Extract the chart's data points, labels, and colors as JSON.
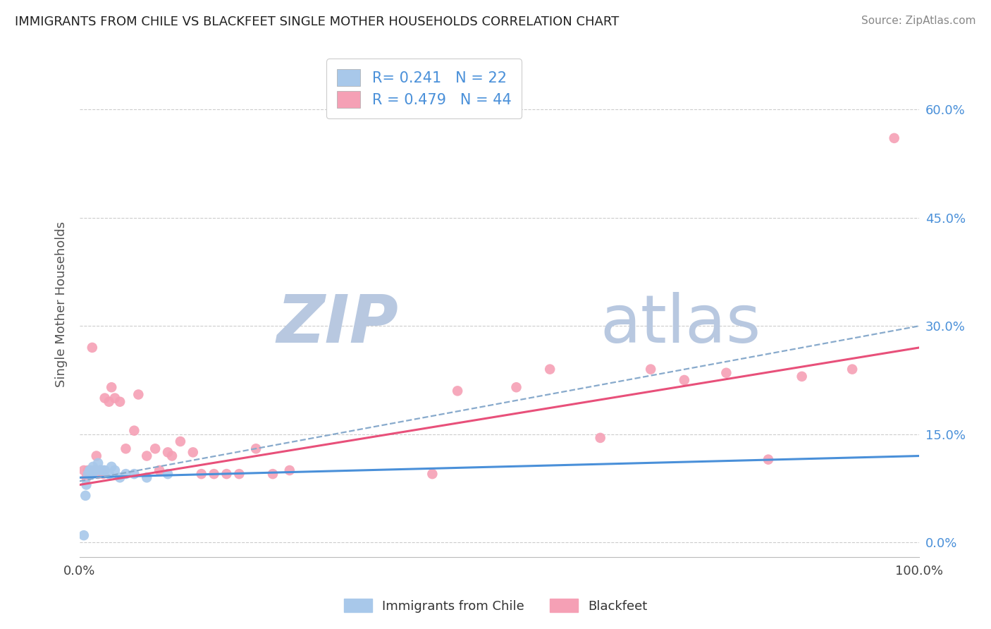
{
  "title": "IMMIGRANTS FROM CHILE VS BLACKFEET SINGLE MOTHER HOUSEHOLDS CORRELATION CHART",
  "source": "Source: ZipAtlas.com",
  "ylabel": "Single Mother Households",
  "legend_label_1": "Immigrants from Chile",
  "legend_label_2": "Blackfeet",
  "R1": 0.241,
  "N1": 22,
  "R2": 0.479,
  "N2": 44,
  "color1": "#a8c8ea",
  "color2": "#f5a0b5",
  "trend_color1": "#4a90d9",
  "trend_color2": "#e8507a",
  "dashed_color": "#88aacc",
  "background_color": "#ffffff",
  "grid_color": "#cccccc",
  "right_ytick_color": "#4a90d9",
  "xlim": [
    0.0,
    1.0
  ],
  "ylim": [
    -0.02,
    0.68
  ],
  "right_yticks": [
    0.0,
    0.15,
    0.3,
    0.45,
    0.6
  ],
  "right_yticklabels": [
    "0.0%",
    "15.0%",
    "30.0%",
    "45.0%",
    "60.0%"
  ],
  "xtick_positions": [
    0.0,
    1.0
  ],
  "xticklabels": [
    "0.0%",
    "100.0%"
  ],
  "scatter_blue_x": [
    0.005,
    0.007,
    0.008,
    0.01,
    0.012,
    0.013,
    0.015,
    0.016,
    0.018,
    0.02,
    0.022,
    0.025,
    0.028,
    0.03,
    0.035,
    0.038,
    0.042,
    0.048,
    0.055,
    0.065,
    0.08,
    0.105
  ],
  "scatter_blue_y": [
    0.01,
    0.065,
    0.08,
    0.095,
    0.1,
    0.1,
    0.095,
    0.105,
    0.1,
    0.1,
    0.11,
    0.1,
    0.1,
    0.1,
    0.095,
    0.105,
    0.1,
    0.09,
    0.095,
    0.095,
    0.09,
    0.095
  ],
  "scatter_pink_x": [
    0.005,
    0.008,
    0.01,
    0.012,
    0.015,
    0.018,
    0.02,
    0.022,
    0.025,
    0.028,
    0.03,
    0.035,
    0.038,
    0.042,
    0.048,
    0.055,
    0.065,
    0.07,
    0.08,
    0.09,
    0.095,
    0.105,
    0.11,
    0.12,
    0.135,
    0.145,
    0.16,
    0.175,
    0.19,
    0.21,
    0.23,
    0.25,
    0.42,
    0.45,
    0.52,
    0.56,
    0.62,
    0.68,
    0.72,
    0.77,
    0.82,
    0.86,
    0.92,
    0.97
  ],
  "scatter_pink_y": [
    0.1,
    0.09,
    0.1,
    0.095,
    0.27,
    0.1,
    0.12,
    0.095,
    0.1,
    0.095,
    0.2,
    0.195,
    0.215,
    0.2,
    0.195,
    0.13,
    0.155,
    0.205,
    0.12,
    0.13,
    0.1,
    0.125,
    0.12,
    0.14,
    0.125,
    0.095,
    0.095,
    0.095,
    0.095,
    0.13,
    0.095,
    0.1,
    0.095,
    0.21,
    0.215,
    0.24,
    0.145,
    0.24,
    0.225,
    0.235,
    0.115,
    0.23,
    0.24,
    0.56
  ],
  "blue_trend_x0": 0.0,
  "blue_trend_y0": 0.09,
  "blue_trend_x1": 1.0,
  "blue_trend_y1": 0.12,
  "pink_trend_x0": 0.0,
  "pink_trend_y0": 0.08,
  "pink_trend_x1": 1.0,
  "pink_trend_y1": 0.27,
  "dashed_trend_x0": 0.0,
  "dashed_trend_y0": 0.085,
  "dashed_trend_x1": 1.0,
  "dashed_trend_y1": 0.3,
  "watermark_line1": "ZIP",
  "watermark_line2": "atlas",
  "watermark_color1": "#b8c8e0",
  "watermark_color2": "#b8c8e0",
  "figsize": [
    14.06,
    8.92
  ],
  "dpi": 100
}
